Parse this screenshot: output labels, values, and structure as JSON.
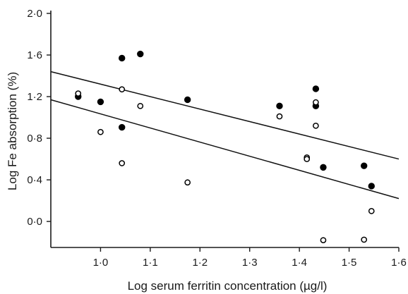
{
  "chart_data": {
    "type": "scatter",
    "title": "",
    "xlabel": "Log serum ferritin concentration (µg/l)",
    "ylabel": "Log Fe absorption (%)",
    "xlim": [
      0.9,
      1.6
    ],
    "ylim": [
      -0.25,
      2.0
    ],
    "xticks": [
      1.0,
      1.1,
      1.2,
      1.3,
      1.4,
      1.5,
      1.6
    ],
    "xtick_labels": [
      "1·0",
      "1·1",
      "1·2",
      "1·3",
      "1·4",
      "1·5",
      "1·6"
    ],
    "yticks": [
      0.0,
      0.4,
      0.8,
      1.2,
      1.6,
      2.0
    ],
    "ytick_labels": [
      "0·0",
      "0·4",
      "0·8",
      "1·2",
      "1·6",
      "2·0"
    ],
    "grid": false,
    "series": [
      {
        "marker": "filled-circle",
        "color": "#000000",
        "points": [
          [
            0.955,
            1.2
          ],
          [
            1.0,
            1.15
          ],
          [
            1.043,
            1.57
          ],
          [
            1.043,
            0.905
          ],
          [
            1.08,
            1.61
          ],
          [
            1.175,
            1.17
          ],
          [
            1.36,
            1.11
          ],
          [
            1.433,
            1.275
          ],
          [
            1.433,
            1.11
          ],
          [
            1.448,
            0.52
          ],
          [
            1.53,
            0.535
          ],
          [
            1.545,
            0.34
          ]
        ]
      },
      {
        "marker": "open-circle",
        "color": "#000000",
        "points": [
          [
            0.955,
            1.23
          ],
          [
            1.0,
            0.86
          ],
          [
            1.043,
            1.27
          ],
          [
            1.043,
            0.56
          ],
          [
            1.08,
            1.11
          ],
          [
            1.175,
            0.375
          ],
          [
            1.36,
            1.01
          ],
          [
            1.415,
            0.615
          ],
          [
            1.415,
            0.6
          ],
          [
            1.433,
            1.145
          ],
          [
            1.433,
            0.92
          ],
          [
            1.448,
            -0.18
          ],
          [
            1.53,
            -0.175
          ],
          [
            1.545,
            0.1
          ]
        ]
      }
    ],
    "lines": [
      {
        "name": "upper-regression",
        "x": [
          0.9,
          1.6
        ],
        "y": [
          1.44,
          0.6
        ]
      },
      {
        "name": "lower-regression",
        "x": [
          0.9,
          1.6
        ],
        "y": [
          1.17,
          0.22
        ]
      }
    ]
  }
}
